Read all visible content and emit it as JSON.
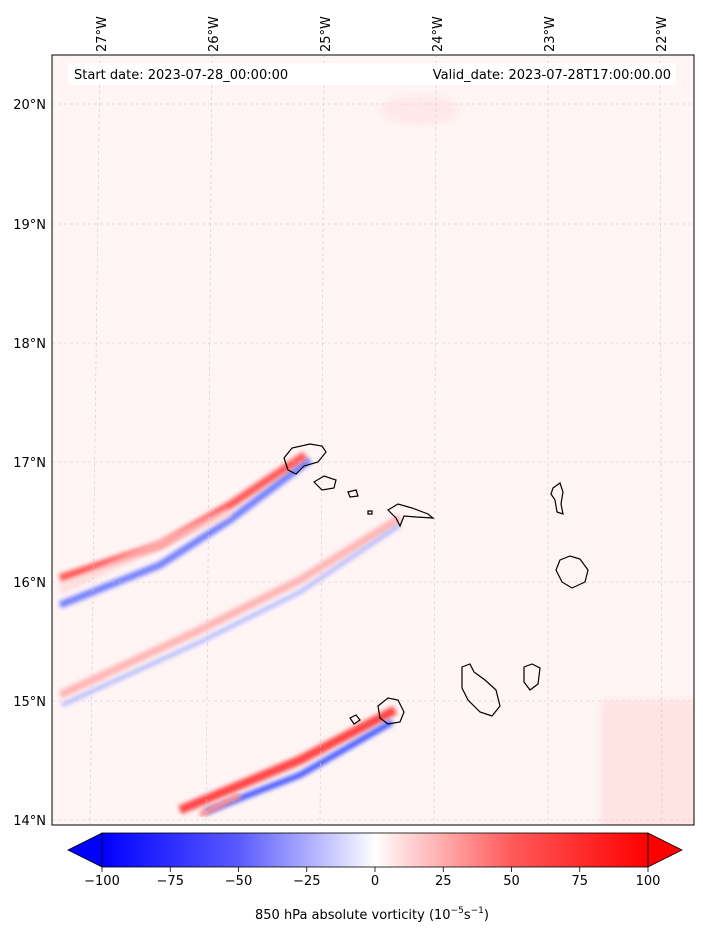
{
  "map": {
    "start_date_label": "Start date: 2023-07-28_00:00:00",
    "valid_date_label": "Valid_date: 2023-07-28T17:00:00.00",
    "lon_labels": [
      "27°W",
      "26°W",
      "25°W",
      "24°W",
      "23°W",
      "22°W"
    ],
    "lat_labels": [
      "20°N",
      "19°N",
      "18°N",
      "17°N",
      "16°N",
      "15°N",
      "14°N"
    ]
  },
  "colorbar": {
    "label": "850 hPa absolute vorticity (10",
    "label_exp1": "−5",
    "label_mid": "s",
    "label_exp2": "−1",
    "label_end": ")",
    "ticks": [
      "−100",
      "−75",
      "−50",
      "−25",
      "0",
      "25",
      "50",
      "75",
      "100"
    ],
    "min": -100,
    "max": 100,
    "neg_color": "#0000ff",
    "pos_color": "#ff0000"
  }
}
